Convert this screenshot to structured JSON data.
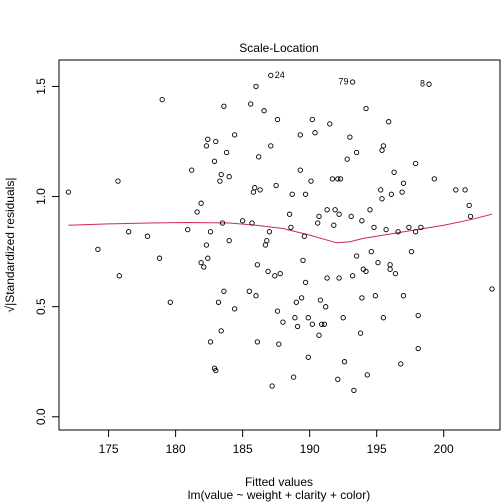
{
  "chart_data": {
    "type": "scatter",
    "title": "Scale-Location",
    "xlabel": "Fitted values",
    "subtitle": "lm(value ~ weight + clarity + color)",
    "ylabel": "√|Standardized residuals|",
    "xlim": [
      171.3,
      204.2
    ],
    "ylim": [
      -0.06,
      1.62
    ],
    "xticks": [
      175,
      180,
      185,
      190,
      195,
      200
    ],
    "yticks": [
      0.0,
      0.5,
      1.0,
      1.5
    ],
    "grid": false,
    "point_color": "#000000",
    "smooth_color": "#d0274e",
    "points": [
      [
        172.0,
        1.02
      ],
      [
        174.2,
        0.76
      ],
      [
        175.7,
        1.07
      ],
      [
        175.8,
        0.64
      ],
      [
        176.5,
        0.84
      ],
      [
        177.9,
        0.82
      ],
      [
        178.8,
        0.72
      ],
      [
        179.0,
        1.44
      ],
      [
        179.6,
        0.52
      ],
      [
        180.9,
        0.85
      ],
      [
        181.2,
        1.12
      ],
      [
        181.6,
        0.93
      ],
      [
        181.9,
        0.97
      ],
      [
        181.9,
        0.7
      ],
      [
        182.1,
        0.68
      ],
      [
        182.3,
        1.23
      ],
      [
        182.3,
        0.78
      ],
      [
        182.4,
        0.72
      ],
      [
        182.4,
        1.26
      ],
      [
        182.6,
        0.34
      ],
      [
        182.6,
        0.84
      ],
      [
        182.9,
        0.22
      ],
      [
        183.0,
        0.21
      ],
      [
        182.9,
        1.16
      ],
      [
        183.0,
        1.25
      ],
      [
        183.2,
        0.52
      ],
      [
        183.3,
        1.07
      ],
      [
        183.4,
        0.39
      ],
      [
        183.4,
        1.1
      ],
      [
        183.5,
        0.88
      ],
      [
        183.6,
        1.41
      ],
      [
        183.6,
        0.57
      ],
      [
        183.8,
        1.2
      ],
      [
        184.0,
        0.8
      ],
      [
        184.0,
        1.09
      ],
      [
        184.4,
        1.28
      ],
      [
        184.4,
        0.49
      ],
      [
        185.0,
        0.89
      ],
      [
        185.5,
        0.57
      ],
      [
        185.6,
        1.42
      ],
      [
        185.7,
        0.88
      ],
      [
        185.8,
        1.02
      ],
      [
        185.9,
        1.04
      ],
      [
        186.0,
        1.5
      ],
      [
        186.0,
        0.55
      ],
      [
        186.1,
        0.69
      ],
      [
        186.1,
        0.34
      ],
      [
        186.2,
        1.18
      ],
      [
        186.3,
        1.03
      ],
      [
        186.6,
        1.39
      ],
      [
        186.7,
        0.78
      ],
      [
        186.8,
        0.8
      ],
      [
        186.9,
        0.66
      ],
      [
        187.0,
        0.84
      ],
      [
        187.1,
        1.55
      ],
      [
        187.1,
        1.23
      ],
      [
        187.2,
        0.14
      ],
      [
        187.4,
        0.64
      ],
      [
        187.5,
        1.05
      ],
      [
        187.6,
        1.35
      ],
      [
        187.6,
        0.48
      ],
      [
        187.7,
        0.33
      ],
      [
        187.8,
        0.65
      ],
      [
        188.0,
        0.43
      ],
      [
        188.5,
        0.92
      ],
      [
        188.6,
        0.86
      ],
      [
        188.7,
        1.01
      ],
      [
        188.8,
        0.18
      ],
      [
        188.9,
        0.45
      ],
      [
        189.0,
        0.52
      ],
      [
        189.1,
        0.41
      ],
      [
        189.3,
        1.12
      ],
      [
        189.3,
        1.28
      ],
      [
        189.4,
        0.54
      ],
      [
        189.5,
        0.71
      ],
      [
        189.6,
        0.82
      ],
      [
        189.7,
        0.61
      ],
      [
        189.7,
        1.01
      ],
      [
        189.9,
        0.27
      ],
      [
        189.9,
        0.45
      ],
      [
        190.1,
        1.07
      ],
      [
        190.2,
        0.42
      ],
      [
        190.2,
        1.35
      ],
      [
        190.4,
        1.29
      ],
      [
        190.6,
        0.88
      ],
      [
        190.7,
        0.37
      ],
      [
        190.7,
        0.91
      ],
      [
        190.8,
        0.53
      ],
      [
        190.9,
        0.42
      ],
      [
        191.1,
        0.42
      ],
      [
        191.2,
        0.5
      ],
      [
        191.3,
        0.94
      ],
      [
        191.3,
        0.63
      ],
      [
        191.5,
        1.33
      ],
      [
        191.7,
        1.08
      ],
      [
        191.8,
        0.87
      ],
      [
        191.9,
        0.94
      ],
      [
        192.1,
        0.17
      ],
      [
        192.1,
        1.08
      ],
      [
        192.2,
        0.92
      ],
      [
        192.2,
        0.63
      ],
      [
        192.3,
        1.08
      ],
      [
        192.5,
        0.45
      ],
      [
        192.6,
        0.25
      ],
      [
        192.8,
        1.17
      ],
      [
        193.0,
        1.27
      ],
      [
        193.1,
        0.91
      ],
      [
        193.2,
        1.52
      ],
      [
        193.2,
        0.64
      ],
      [
        193.3,
        0.12
      ],
      [
        193.5,
        0.73
      ],
      [
        193.5,
        1.2
      ],
      [
        193.8,
        0.38
      ],
      [
        193.9,
        0.54
      ],
      [
        193.9,
        0.89
      ],
      [
        194.0,
        0.67
      ],
      [
        194.2,
        1.4
      ],
      [
        194.2,
        0.66
      ],
      [
        194.3,
        0.19
      ],
      [
        194.5,
        0.94
      ],
      [
        194.6,
        0.75
      ],
      [
        194.8,
        0.86
      ],
      [
        194.9,
        0.55
      ],
      [
        195.1,
        0.7
      ],
      [
        195.3,
        1.03
      ],
      [
        195.4,
        1.21
      ],
      [
        195.4,
        0.99
      ],
      [
        195.5,
        1.23
      ],
      [
        195.5,
        0.45
      ],
      [
        195.7,
        0.85
      ],
      [
        195.9,
        1.34
      ],
      [
        196.0,
        0.69
      ],
      [
        196.0,
        0.67
      ],
      [
        196.1,
        1.01
      ],
      [
        196.3,
        1.11
      ],
      [
        196.4,
        0.65
      ],
      [
        196.6,
        0.84
      ],
      [
        196.8,
        0.24
      ],
      [
        196.9,
        1.02
      ],
      [
        197.0,
        1.06
      ],
      [
        197.0,
        0.55
      ],
      [
        197.4,
        0.86
      ],
      [
        197.6,
        0.75
      ],
      [
        197.9,
        0.84
      ],
      [
        197.9,
        1.15
      ],
      [
        198.1,
        0.31
      ],
      [
        198.1,
        0.46
      ],
      [
        198.3,
        0.86
      ],
      [
        198.9,
        1.51
      ],
      [
        199.3,
        1.08
      ],
      [
        200.9,
        1.03
      ],
      [
        201.6,
        1.03
      ],
      [
        201.9,
        0.96
      ],
      [
        202.0,
        0.91
      ],
      [
        203.6,
        0.58
      ]
    ],
    "labeled_points": [
      {
        "label": "24",
        "x": 187.1,
        "y": 1.55
      },
      {
        "label": "79",
        "x": 193.2,
        "y": 1.52
      },
      {
        "label": "8",
        "x": 198.9,
        "y": 1.51
      }
    ],
    "smooth_line": [
      [
        172.0,
        0.87
      ],
      [
        175.0,
        0.876
      ],
      [
        178.0,
        0.88
      ],
      [
        181.0,
        0.882
      ],
      [
        184.0,
        0.88
      ],
      [
        186.0,
        0.87
      ],
      [
        188.0,
        0.855
      ],
      [
        190.0,
        0.825
      ],
      [
        192.0,
        0.79
      ],
      [
        193.0,
        0.795
      ],
      [
        194.0,
        0.81
      ],
      [
        196.0,
        0.83
      ],
      [
        198.0,
        0.85
      ],
      [
        200.0,
        0.87
      ],
      [
        202.0,
        0.895
      ],
      [
        203.6,
        0.92
      ]
    ]
  }
}
